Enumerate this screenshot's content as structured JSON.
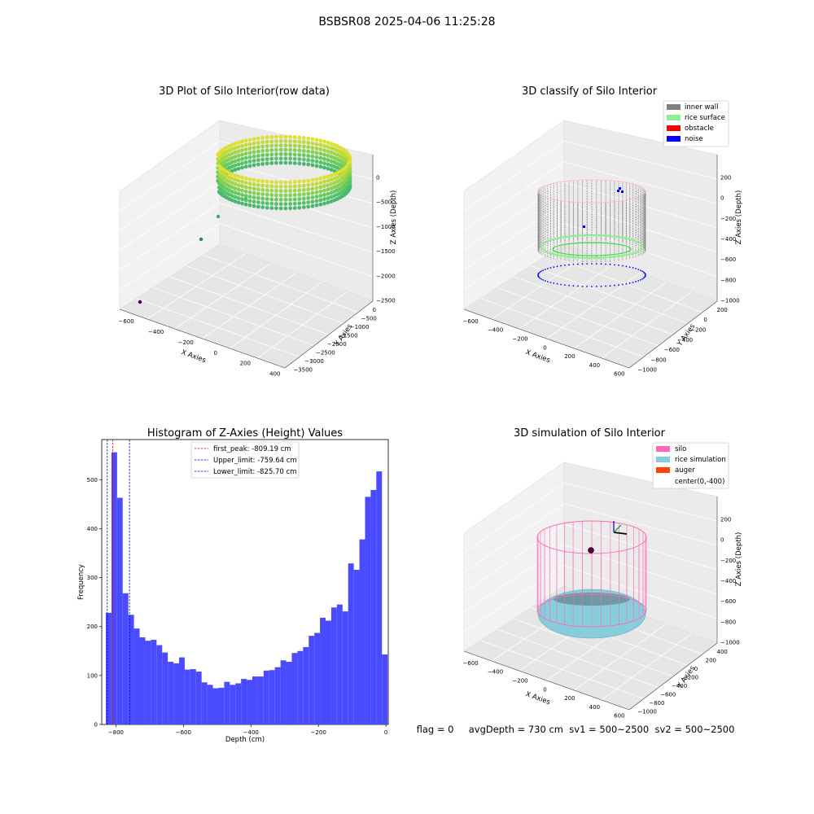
{
  "figure": {
    "title": "BSBSR08 2025-04-06 11:25:28",
    "footer": "flag = 0     avgDepth = 730 cm  sv1 = 500~2500  sv2 = 500~2500"
  },
  "colors": {
    "bar": "#4a4aff",
    "inner_wall": "#808080",
    "rice_surface": "#90ee90",
    "obstacle": "#ff0000",
    "noise": "#0000ff",
    "silo": "#ff69b4",
    "rice_simulation": "#87cedc",
    "auger": "#ff4500",
    "first_peak_line": "#ff0000",
    "limit_line": "#0000cc"
  },
  "chart_data": [
    {
      "type": "scatter",
      "subtype": "3d",
      "title": "3D Plot of Silo Interior(row data)",
      "xlabel": "X Axies",
      "ylabel": "Y Axies",
      "zlabel": "Z Axies (Depth)",
      "x_ticks": [
        "−600",
        "−400",
        "−200",
        "0",
        "200",
        "400"
      ],
      "y_ticks": [
        "0",
        "−500",
        "−1000",
        "−1500",
        "−2000",
        "−2500",
        "−3000",
        "−3500"
      ],
      "z_ticks": [
        "0",
        "−500",
        "−1000",
        "−1500",
        "−2000",
        "−2500"
      ],
      "colormap": "viridis",
      "grid": true
    },
    {
      "type": "scatter",
      "subtype": "3d",
      "title": "3D classify of Silo Interior",
      "xlabel": "X Axies",
      "ylabel": "Y Axies",
      "zlabel": "Z Axies (Depth)",
      "x_ticks": [
        "−600",
        "−400",
        "−200",
        "0",
        "200",
        "400",
        "600"
      ],
      "y_ticks": [
        "200",
        "0",
        "−200",
        "−400",
        "−600",
        "−800",
        "−1000"
      ],
      "z_ticks": [
        "200",
        "0",
        "−200",
        "−400",
        "−600",
        "−800",
        "−1000"
      ],
      "legend": [
        "inner wall",
        "rice surface",
        "obstacle",
        "noise"
      ],
      "legend_position": "top-right",
      "grid": true
    },
    {
      "type": "bar",
      "subtype": "histogram",
      "title": "Histogram of Z-Axies (Height) Values",
      "xlabel": "Depth (cm)",
      "ylabel": "Frequency",
      "xlim": [
        -842,
        7
      ],
      "ylim": [
        0,
        582
      ],
      "x_ticks": [
        -800,
        -600,
        -400,
        -200,
        0
      ],
      "x_tick_labels": [
        "−800",
        "−600",
        "−400",
        "−200",
        "0"
      ],
      "y_ticks": [
        0,
        100,
        200,
        300,
        400,
        500
      ],
      "y_tick_labels": [
        "0",
        "100",
        "200",
        "300",
        "400",
        "500"
      ],
      "bin_start": -830,
      "bin_width": 16.7,
      "values": [
        228,
        556,
        463,
        268,
        224,
        196,
        178,
        171,
        173,
        162,
        147,
        128,
        125,
        137,
        112,
        113,
        108,
        86,
        81,
        74,
        75,
        87,
        81,
        84,
        93,
        91,
        98,
        98,
        110,
        111,
        117,
        131,
        128,
        146,
        150,
        158,
        181,
        187,
        218,
        212,
        239,
        245,
        231,
        329,
        316,
        378,
        465,
        479,
        517,
        143
      ],
      "vlines": [
        {
          "label": "first_peak: -809.19 cm",
          "x": -809.19,
          "color": "#ff0000"
        },
        {
          "label": "Upper_limit: -759.64 cm",
          "x": -759.64,
          "color": "#0000cc"
        },
        {
          "label": "Lower_limit: -825.70 cm",
          "x": -825.7,
          "color": "#0000cc"
        }
      ],
      "legend_position": "top-center"
    },
    {
      "type": "scatter",
      "subtype": "3d",
      "title": "3D simulation of Silo Interior",
      "xlabel": "X Axies",
      "ylabel": "Y Axies",
      "zlabel": "Z Axies (Depth)",
      "x_ticks": [
        "−600",
        "−400",
        "−200",
        "0",
        "200",
        "400",
        "600"
      ],
      "y_ticks": [
        "400",
        "200",
        "0",
        "−200",
        "−400",
        "−600",
        "−800",
        "−1000"
      ],
      "z_ticks": [
        "200",
        "0",
        "−200",
        "−400",
        "−600",
        "−800",
        "−1000"
      ],
      "legend": [
        "silo",
        "rice simulation",
        "auger",
        "center(0,-400)"
      ],
      "legend_position": "top-right",
      "grid": true
    }
  ]
}
